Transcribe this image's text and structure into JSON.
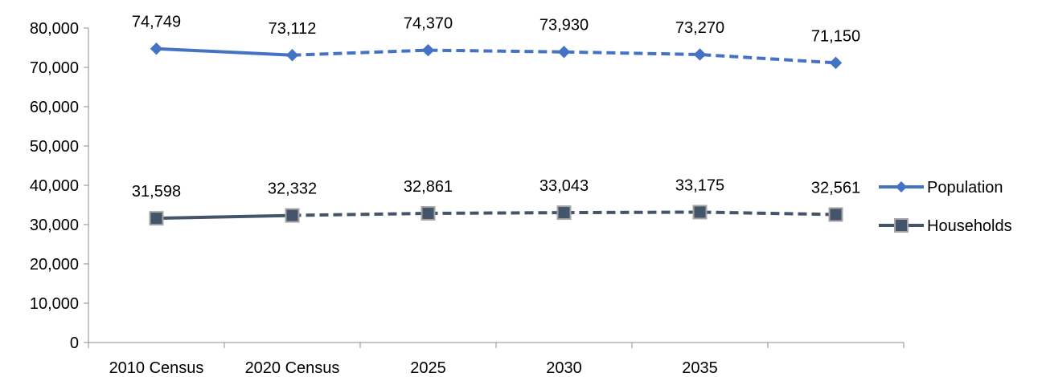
{
  "chart_data": {
    "type": "line",
    "categories": [
      "2010 Census",
      "2020 Census",
      "2025",
      "2030",
      "2035",
      ""
    ],
    "y_ticks": [
      "0",
      "10,000",
      "20,000",
      "30,000",
      "40,000",
      "50,000",
      "60,000",
      "70,000",
      "80,000"
    ],
    "ylim": [
      0,
      80000
    ],
    "grid": false,
    "legend_position": "right",
    "series": [
      {
        "name": "Population",
        "values": [
          74749,
          73112,
          74370,
          73930,
          73270,
          71150
        ],
        "labels": [
          "74,749",
          "73,112",
          "74,370",
          "73,930",
          "73,270",
          "71,150"
        ],
        "color": "#4472C4",
        "marker": "diamond"
      },
      {
        "name": "Households",
        "values": [
          31598,
          32332,
          32861,
          33043,
          33175,
          32561
        ],
        "labels": [
          "31,598",
          "32,332",
          "32,861",
          "33,043",
          "33,175",
          "32,561"
        ],
        "color": "#44546A",
        "marker": "square"
      }
    ],
    "projected_from_index": 1
  }
}
